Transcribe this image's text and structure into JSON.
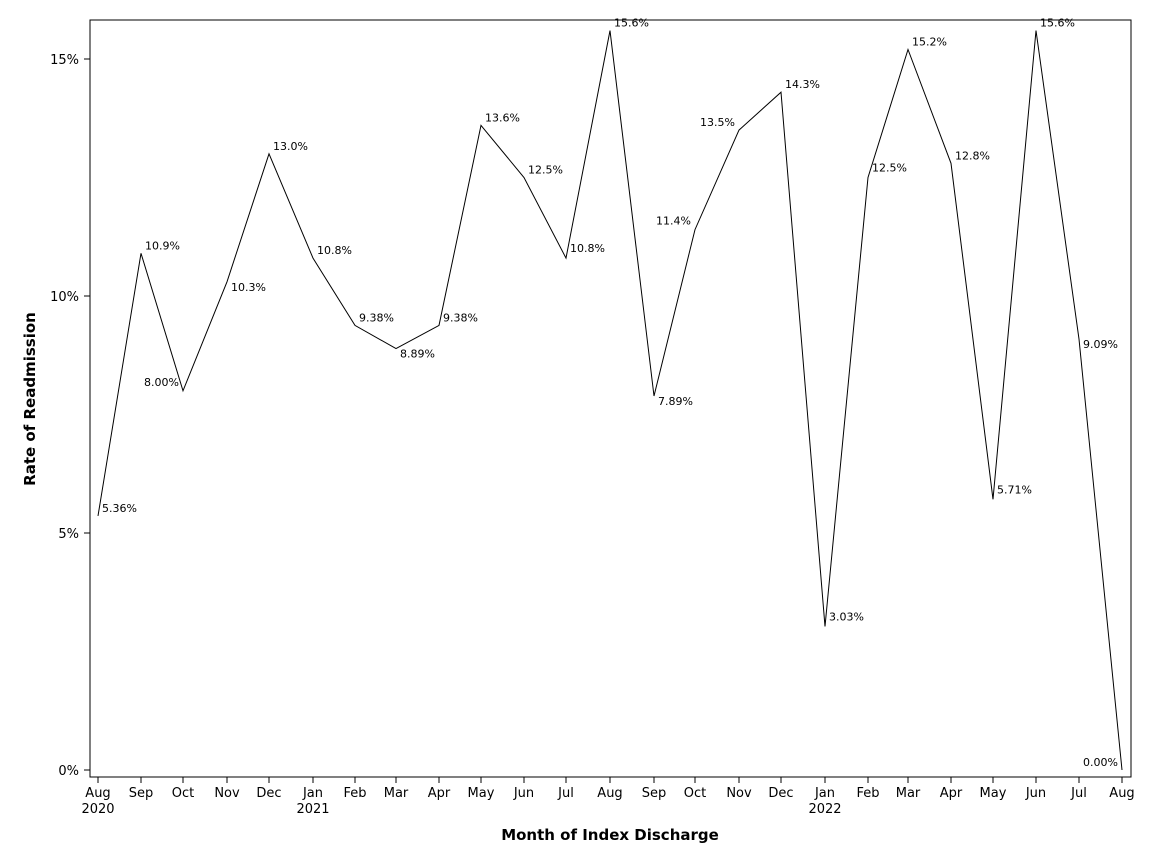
{
  "chart_data": {
    "type": "line",
    "xlabel": "Month of Index Discharge",
    "ylabel": "Rate of Readmission",
    "ylim": [
      0,
      15.6
    ],
    "y_ticks": [
      {
        "value": 0,
        "label": "0%"
      },
      {
        "value": 5,
        "label": "5%"
      },
      {
        "value": 10,
        "label": "10%"
      },
      {
        "value": 15,
        "label": "15%"
      }
    ],
    "x_labels": [
      "Aug",
      "Sep",
      "Oct",
      "Nov",
      "Dec",
      "Jan",
      "Feb",
      "Mar",
      "Apr",
      "May",
      "Jun",
      "Jul",
      "Aug",
      "Sep",
      "Oct",
      "Nov",
      "Dec",
      "Jan",
      "Feb",
      "Mar",
      "Apr",
      "May",
      "Jun",
      "Jul",
      "Aug"
    ],
    "year_labels": [
      {
        "index": 0,
        "label": "2020"
      },
      {
        "index": 5,
        "label": "2021"
      },
      {
        "index": 17,
        "label": "2022"
      }
    ],
    "values": [
      5.36,
      10.9,
      8.0,
      10.3,
      13.0,
      10.8,
      9.38,
      8.89,
      9.38,
      13.6,
      12.5,
      10.8,
      15.6,
      7.89,
      11.4,
      13.5,
      14.3,
      3.03,
      12.5,
      15.2,
      12.8,
      5.71,
      15.6,
      9.09,
      0.0
    ],
    "data_labels": [
      "5.36%",
      "10.9%",
      "8.00%",
      "10.3%",
      "13.0%",
      "10.8%",
      "9.38%",
      "8.89%",
      "9.38%",
      "13.6%",
      "12.5%",
      "10.8%",
      "15.6%",
      "7.89%",
      "11.4%",
      "13.5%",
      "14.3%",
      "3.03%",
      "12.5%",
      "15.2%",
      "12.8%",
      "5.71%",
      "15.6%",
      "9.09%",
      "0.00%"
    ],
    "label_placement": [
      "right-above",
      "right-above",
      "left",
      "right-below",
      "right-above",
      "right-above",
      "right-above",
      "right-below",
      "right-above",
      "right-above",
      "right-above",
      "right",
      "right-above",
      "right-below",
      "left",
      "left-above",
      "right-above",
      "right",
      "right",
      "right-above",
      "right-above",
      "right",
      "right-above",
      "right-below",
      "left-above"
    ],
    "line_color": "#000000"
  }
}
